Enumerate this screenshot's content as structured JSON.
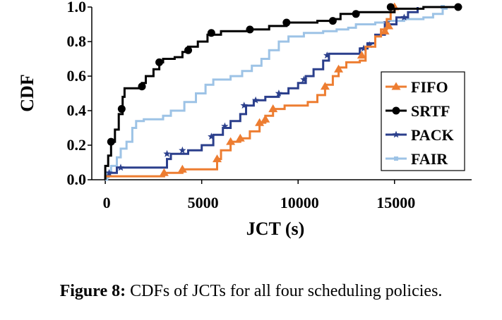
{
  "colors": {
    "FIFO": "#ED7D31",
    "SRTF": "#000000",
    "PACK": "#2B3F8C",
    "FAIR": "#9DC3E6"
  },
  "caption": {
    "label": "Figure 8:",
    "text": " CDFs of JCTs for all four scheduling policies."
  },
  "chart_data": {
    "type": "line",
    "xlabel": "JCT (s)",
    "ylabel": "CDF",
    "xlim": [
      -700,
      19000
    ],
    "ylim": [
      0,
      1
    ],
    "xticks": [
      0,
      5000,
      10000,
      15000
    ],
    "xtick_labels": [
      "0",
      "5000",
      "10000",
      "15000"
    ],
    "yticks": [
      0,
      0.2,
      0.4,
      0.6,
      0.8,
      1.0
    ],
    "ytick_labels": [
      "0.0",
      "0.2",
      "0.4",
      "0.6",
      "0.8",
      "1.0"
    ],
    "grid": false,
    "legend_position": "inside-right",
    "series": [
      {
        "name": "FIFO",
        "marker": "triangle",
        "points": [
          [
            0,
            0
          ],
          [
            0,
            0.02
          ],
          [
            3000,
            0.02
          ],
          [
            3050,
            0.04
          ],
          [
            4000,
            0.06
          ],
          [
            5800,
            0.06
          ],
          [
            5800,
            0.12
          ],
          [
            6000,
            0.17
          ],
          [
            6500,
            0.22
          ],
          [
            7000,
            0.24
          ],
          [
            7500,
            0.28
          ],
          [
            8000,
            0.33
          ],
          [
            8300,
            0.37
          ],
          [
            8700,
            0.41
          ],
          [
            9300,
            0.43
          ],
          [
            10500,
            0.45
          ],
          [
            11000,
            0.49
          ],
          [
            11400,
            0.55
          ],
          [
            11800,
            0.6
          ],
          [
            12100,
            0.65
          ],
          [
            12500,
            0.68
          ],
          [
            13200,
            0.69
          ],
          [
            13500,
            0.77
          ],
          [
            14000,
            0.83
          ],
          [
            14300,
            0.87
          ],
          [
            14600,
            0.93
          ],
          [
            14800,
            0.97
          ],
          [
            15000,
            1.0
          ]
        ],
        "markers_at": [
          [
            3050,
            0.04
          ],
          [
            4000,
            0.06
          ],
          [
            5800,
            0.12
          ],
          [
            6500,
            0.22
          ],
          [
            7000,
            0.24
          ],
          [
            8000,
            0.33
          ],
          [
            8300,
            0.35
          ],
          [
            8700,
            0.41
          ],
          [
            11400,
            0.54
          ],
          [
            12100,
            0.64
          ],
          [
            13300,
            0.72
          ],
          [
            14500,
            0.86
          ],
          [
            14700,
            0.89
          ],
          [
            15000,
            1.0
          ]
        ]
      },
      {
        "name": "SRTF",
        "marker": "circle",
        "points": [
          [
            0,
            0
          ],
          [
            0,
            0.08
          ],
          [
            150,
            0.14
          ],
          [
            300,
            0.22
          ],
          [
            500,
            0.29
          ],
          [
            700,
            0.38
          ],
          [
            900,
            0.48
          ],
          [
            1000,
            0.53
          ],
          [
            1500,
            0.53
          ],
          [
            1900,
            0.56
          ],
          [
            2100,
            0.6
          ],
          [
            2500,
            0.64
          ],
          [
            2800,
            0.68
          ],
          [
            3000,
            0.7
          ],
          [
            3600,
            0.71
          ],
          [
            4000,
            0.74
          ],
          [
            4300,
            0.77
          ],
          [
            4800,
            0.8
          ],
          [
            5300,
            0.84
          ],
          [
            6000,
            0.86
          ],
          [
            7500,
            0.87
          ],
          [
            8500,
            0.89
          ],
          [
            9400,
            0.91
          ],
          [
            11000,
            0.92
          ],
          [
            11800,
            0.93
          ],
          [
            12200,
            0.96
          ],
          [
            13000,
            0.97
          ],
          [
            15000,
            0.99
          ],
          [
            16500,
            1.0
          ],
          [
            18500,
            1.0
          ]
        ],
        "markers_at": [
          [
            300,
            0.22
          ],
          [
            850,
            0.41
          ],
          [
            1900,
            0.54
          ],
          [
            2800,
            0.68
          ],
          [
            4300,
            0.75
          ],
          [
            5500,
            0.85
          ],
          [
            7500,
            0.87
          ],
          [
            9400,
            0.91
          ],
          [
            11800,
            0.92
          ],
          [
            13000,
            0.96
          ],
          [
            14800,
            1.0
          ],
          [
            18300,
            1.0
          ]
        ]
      },
      {
        "name": "PACK",
        "marker": "star",
        "points": [
          [
            0,
            0
          ],
          [
            0,
            0.02
          ],
          [
            200,
            0.04
          ],
          [
            600,
            0.07
          ],
          [
            2900,
            0.07
          ],
          [
            3200,
            0.12
          ],
          [
            3400,
            0.15
          ],
          [
            4300,
            0.17
          ],
          [
            5000,
            0.2
          ],
          [
            5600,
            0.26
          ],
          [
            6100,
            0.3
          ],
          [
            6500,
            0.34
          ],
          [
            7000,
            0.38
          ],
          [
            7300,
            0.43
          ],
          [
            7700,
            0.46
          ],
          [
            8300,
            0.48
          ],
          [
            9000,
            0.5
          ],
          [
            9500,
            0.53
          ],
          [
            10000,
            0.56
          ],
          [
            10400,
            0.6
          ],
          [
            10800,
            0.64
          ],
          [
            11300,
            0.69
          ],
          [
            11600,
            0.73
          ],
          [
            12500,
            0.73
          ],
          [
            13200,
            0.76
          ],
          [
            13600,
            0.79
          ],
          [
            14000,
            0.84
          ],
          [
            14500,
            0.9
          ],
          [
            15100,
            0.94
          ],
          [
            15700,
            0.97
          ],
          [
            16200,
            1.0
          ]
        ],
        "markers_at": [
          [
            200,
            0.04
          ],
          [
            800,
            0.07
          ],
          [
            3200,
            0.15
          ],
          [
            4000,
            0.17
          ],
          [
            5500,
            0.25
          ],
          [
            6200,
            0.31
          ],
          [
            7200,
            0.43
          ],
          [
            7800,
            0.46
          ],
          [
            9000,
            0.5
          ],
          [
            10300,
            0.58
          ],
          [
            11500,
            0.72
          ],
          [
            13400,
            0.76
          ],
          [
            13700,
            0.78
          ],
          [
            14600,
            0.91
          ],
          [
            15500,
            0.94
          ]
        ]
      },
      {
        "name": "FAIR",
        "marker": "square",
        "points": [
          [
            0,
            0
          ],
          [
            100,
            0.04
          ],
          [
            300,
            0.08
          ],
          [
            600,
            0.13
          ],
          [
            800,
            0.18
          ],
          [
            1100,
            0.22
          ],
          [
            1400,
            0.3
          ],
          [
            1600,
            0.34
          ],
          [
            2000,
            0.35
          ],
          [
            3000,
            0.37
          ],
          [
            3400,
            0.4
          ],
          [
            4100,
            0.45
          ],
          [
            4700,
            0.5
          ],
          [
            5200,
            0.55
          ],
          [
            5600,
            0.58
          ],
          [
            6500,
            0.6
          ],
          [
            7100,
            0.63
          ],
          [
            7600,
            0.66
          ],
          [
            8100,
            0.7
          ],
          [
            8500,
            0.75
          ],
          [
            9000,
            0.8
          ],
          [
            9500,
            0.83
          ],
          [
            10300,
            0.85
          ],
          [
            11300,
            0.86
          ],
          [
            12000,
            0.87
          ],
          [
            12600,
            0.88
          ],
          [
            13000,
            0.9
          ],
          [
            14000,
            0.91
          ],
          [
            14700,
            0.92
          ],
          [
            15500,
            0.93
          ],
          [
            16500,
            0.94
          ],
          [
            17000,
            0.96
          ],
          [
            17500,
            0.99
          ],
          [
            17700,
            1.0
          ]
        ],
        "markers_at": [
          [
            100,
            0.02
          ],
          [
            17500,
            1.0
          ]
        ]
      }
    ]
  }
}
